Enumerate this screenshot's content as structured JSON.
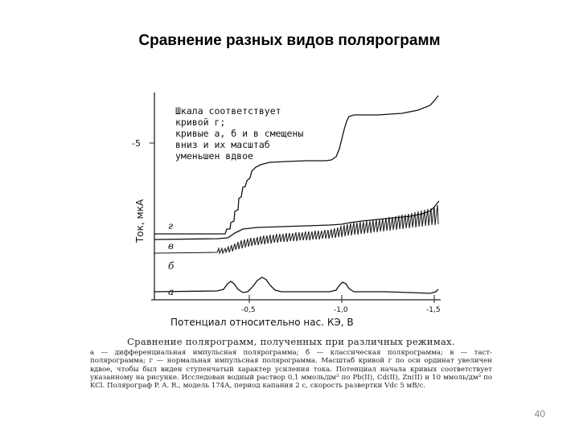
{
  "slide": {
    "title": "Сравнение разных видов полярограмм",
    "page_number": "40"
  },
  "figure": {
    "y_axis_label": "Ток, мкА",
    "y_tick_label": "-5",
    "x_axis_label": "Потенциал относительно нас. КЭ, В",
    "x_tick_labels": [
      "-0,5",
      "-1,0",
      "-1,5"
    ],
    "note_lines": [
      "Шкала соответствует",
      "кривой г;",
      "кривые а, б и в смещены",
      "вниз и их масштаб",
      "уменьшен вдвое"
    ],
    "curve_labels": [
      "г",
      "в",
      "б",
      "а"
    ]
  },
  "caption": {
    "title": "Сравнение полярограмм, полученных при различных режимах.",
    "body": "а — дифференциальная импульсная полярограмма; б — классическая полярограмма; в — таст-полярограмма; г — нормальная импульсная полярограмма. Масштаб кривой г по оси ординат увеличен вдвое, чтобы был виден ступенчатый характер усиления тока. Потенциал начала кривых соответствует указанному на рисунке. Исследован водный раствор 0,1 ммоль/дм³ по Pb(II), Cd(II), Zn(II) и 10 ммоль/дм³ по KCl. Полярограф P. A. R., модель 174А, период капания 2 с, скорость развертки Vdc 5 мВ/с."
  }
}
